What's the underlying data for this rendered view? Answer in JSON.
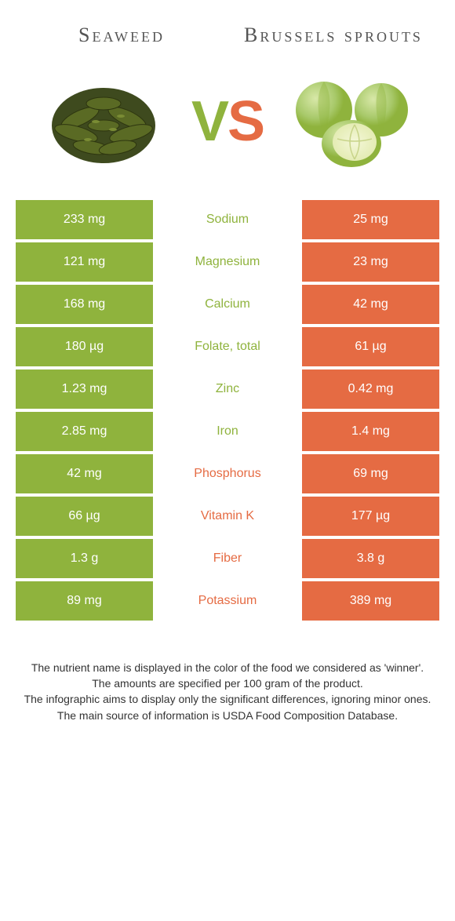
{
  "colors": {
    "left": "#8fb33d",
    "right": "#e56b43",
    "bg": "#ffffff",
    "title": "#555555"
  },
  "header": {
    "left_title": "Seaweed",
    "right_title": "Brussels sprouts"
  },
  "vs": {
    "v": "V",
    "s": "S"
  },
  "rows": [
    {
      "name": "Sodium",
      "left": "233 mg",
      "right": "25 mg",
      "winner": "left"
    },
    {
      "name": "Magnesium",
      "left": "121 mg",
      "right": "23 mg",
      "winner": "left"
    },
    {
      "name": "Calcium",
      "left": "168 mg",
      "right": "42 mg",
      "winner": "left"
    },
    {
      "name": "Folate, total",
      "left": "180 µg",
      "right": "61 µg",
      "winner": "left"
    },
    {
      "name": "Zinc",
      "left": "1.23 mg",
      "right": "0.42 mg",
      "winner": "left"
    },
    {
      "name": "Iron",
      "left": "2.85 mg",
      "right": "1.4 mg",
      "winner": "left"
    },
    {
      "name": "Phosphorus",
      "left": "42 mg",
      "right": "69 mg",
      "winner": "right"
    },
    {
      "name": "Vitamin K",
      "left": "66 µg",
      "right": "177 µg",
      "winner": "right"
    },
    {
      "name": "Fiber",
      "left": "1.3 g",
      "right": "3.8 g",
      "winner": "right"
    },
    {
      "name": "Potassium",
      "left": "89 mg",
      "right": "389 mg",
      "winner": "right"
    }
  ],
  "footer": {
    "l1": "The nutrient name is displayed in the color of the food we considered as 'winner'.",
    "l2": "The amounts are specified per 100 gram of the product.",
    "l3": "The infographic aims to display only the significant differences, ignoring minor ones.",
    "l4": "The main source of information is USDA Food Composition Database."
  }
}
